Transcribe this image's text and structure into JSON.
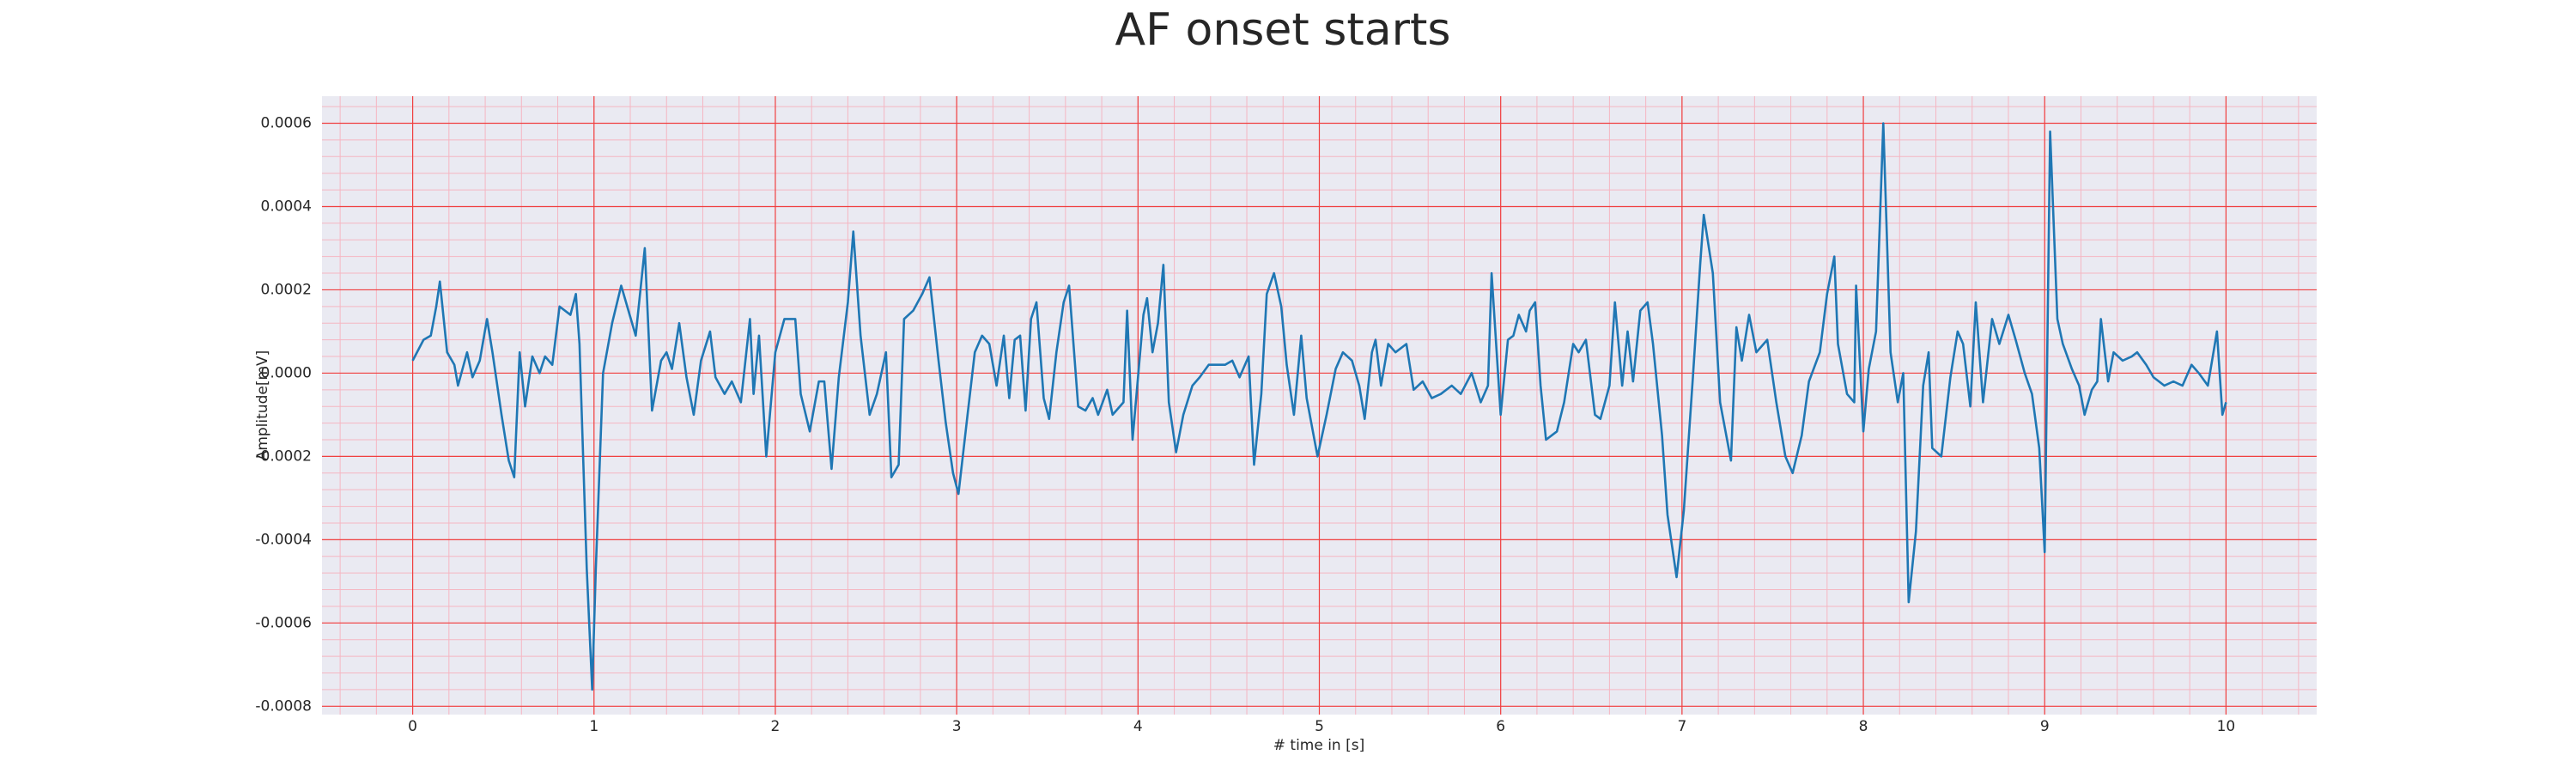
{
  "chart_data": {
    "type": "line",
    "title": "AF onset starts",
    "xlabel": "# time in [s]",
    "ylabel": "Amplitude[mV]",
    "x": [
      0,
      0.06,
      0.1,
      0.13,
      0.15,
      0.19,
      0.23,
      0.25,
      0.3,
      0.33,
      0.37,
      0.41,
      0.44,
      0.49,
      0.53,
      0.56,
      0.59,
      0.62,
      0.66,
      0.7,
      0.73,
      0.77,
      0.81,
      0.87,
      0.9,
      0.92,
      0.96,
      0.99,
      1.01,
      1.05,
      1.1,
      1.15,
      1.19,
      1.23,
      1.28,
      1.32,
      1.37,
      1.4,
      1.43,
      1.47,
      1.51,
      1.55,
      1.59,
      1.64,
      1.67,
      1.72,
      1.76,
      1.81,
      1.86,
      1.88,
      1.91,
      1.95,
      2.0,
      2.05,
      2.11,
      2.14,
      2.19,
      2.24,
      2.27,
      2.31,
      2.35,
      2.4,
      2.43,
      2.47,
      2.52,
      2.56,
      2.61,
      2.64,
      2.68,
      2.71,
      2.76,
      2.81,
      2.85,
      2.9,
      2.94,
      2.98,
      3.01,
      3.06,
      3.1,
      3.14,
      3.18,
      3.22,
      3.26,
      3.29,
      3.32,
      3.35,
      3.38,
      3.41,
      3.44,
      3.48,
      3.51,
      3.55,
      3.59,
      3.62,
      3.67,
      3.71,
      3.75,
      3.78,
      3.83,
      3.86,
      3.92,
      3.94,
      3.97,
      4.03,
      4.05,
      4.08,
      4.11,
      4.14,
      4.17,
      4.21,
      4.25,
      4.3,
      4.34,
      4.39,
      4.43,
      4.48,
      4.52,
      4.56,
      4.61,
      4.64,
      4.68,
      4.71,
      4.75,
      4.79,
      4.82,
      4.86,
      4.9,
      4.93,
      4.99,
      5.04,
      5.09,
      5.13,
      5.18,
      5.22,
      5.25,
      5.29,
      5.31,
      5.34,
      5.38,
      5.42,
      5.48,
      5.52,
      5.57,
      5.62,
      5.67,
      5.73,
      5.78,
      5.84,
      5.89,
      5.93,
      5.95,
      6.0,
      6.04,
      6.07,
      6.1,
      6.14,
      6.16,
      6.19,
      6.22,
      6.25,
      6.31,
      6.35,
      6.4,
      6.43,
      6.47,
      6.52,
      6.55,
      6.6,
      6.63,
      6.67,
      6.7,
      6.73,
      6.77,
      6.81,
      6.84,
      6.89,
      6.92,
      6.97,
      7.01,
      7.06,
      7.1,
      7.12,
      7.17,
      7.21,
      7.27,
      7.3,
      7.33,
      7.37,
      7.41,
      7.47,
      7.52,
      7.57,
      7.61,
      7.66,
      7.7,
      7.76,
      7.8,
      7.84,
      7.86,
      7.91,
      7.95,
      7.96,
      8.0,
      8.03,
      8.07,
      8.11,
      8.15,
      8.19,
      8.22,
      8.25,
      8.29,
      8.33,
      8.36,
      8.38,
      8.43,
      8.48,
      8.52,
      8.55,
      8.59,
      8.62,
      8.66,
      8.71,
      8.75,
      8.8,
      8.84,
      8.89,
      8.93,
      8.97,
      9.0,
      9.03,
      9.07,
      9.1,
      9.15,
      9.19,
      9.22,
      9.26,
      9.29,
      9.31,
      9.35,
      9.38,
      9.43,
      9.48,
      9.51,
      9.56,
      9.6,
      9.66,
      9.71,
      9.76,
      9.81,
      9.85,
      9.9,
      9.95,
      9.98,
      10.0
    ],
    "series": [
      {
        "color": "#1f77b4",
        "values": [
          3e-05,
          8e-05,
          9e-05,
          0.00016,
          0.00022,
          5e-05,
          2e-05,
          -3e-05,
          5e-05,
          -1e-05,
          3e-05,
          0.00013,
          5e-05,
          -0.0001,
          -0.00021,
          -0.00025,
          5e-05,
          -8e-05,
          4e-05,
          0,
          4e-05,
          2e-05,
          0.00016,
          0.00014,
          0.00019,
          7e-05,
          -0.00047,
          -0.00076,
          -0.00047,
          0,
          0.00012,
          0.00021,
          0.00015,
          9e-05,
          0.0003,
          -9e-05,
          3e-05,
          5e-05,
          1e-05,
          0.00012,
          -1e-05,
          -0.0001,
          3e-05,
          0.0001,
          -1e-05,
          -5e-05,
          -2e-05,
          -7e-05,
          0.00013,
          -5e-05,
          9e-05,
          -0.0002,
          5e-05,
          0.00013,
          0.00013,
          -5e-05,
          -0.00014,
          -2e-05,
          -2e-05,
          -0.00023,
          -1e-05,
          0.00017,
          0.00034,
          9e-05,
          -0.0001,
          -5e-05,
          5e-05,
          -0.00025,
          -0.00022,
          0.00013,
          0.00015,
          0.00019,
          0.00023,
          3e-05,
          -0.00012,
          -0.00024,
          -0.00029,
          -0.0001,
          5e-05,
          9e-05,
          7e-05,
          -3e-05,
          9e-05,
          -6e-05,
          8e-05,
          9e-05,
          -9e-05,
          0.00013,
          0.00017,
          -6e-05,
          -0.00011,
          5e-05,
          0.00017,
          0.00021,
          -8e-05,
          -9e-05,
          -6e-05,
          -0.0001,
          -4e-05,
          -0.0001,
          -7e-05,
          0.00015,
          -0.00016,
          0.00014,
          0.00018,
          5e-05,
          0.00012,
          0.00026,
          -7e-05,
          -0.00019,
          -0.0001,
          -3e-05,
          -1e-05,
          2e-05,
          2e-05,
          2e-05,
          3e-05,
          -1e-05,
          4e-05,
          -0.00022,
          -5e-05,
          0.00019,
          0.00024,
          0.00016,
          2e-05,
          -0.0001,
          9e-05,
          -6e-05,
          -0.0002,
          -0.0001,
          1e-05,
          5e-05,
          3e-05,
          -3e-05,
          -0.00011,
          5e-05,
          8e-05,
          -3e-05,
          7e-05,
          5e-05,
          7e-05,
          -4e-05,
          -2e-05,
          -6e-05,
          -5e-05,
          -3e-05,
          -5e-05,
          0,
          -7e-05,
          -3e-05,
          0.00024,
          -0.0001,
          8e-05,
          9e-05,
          0.00014,
          0.0001,
          0.00015,
          0.00017,
          -3e-05,
          -0.00016,
          -0.00014,
          -7e-05,
          7e-05,
          5e-05,
          8e-05,
          -0.0001,
          -0.00011,
          -3e-05,
          0.00017,
          -3e-05,
          0.0001,
          -2e-05,
          0.00015,
          0.00017,
          7e-05,
          -0.00015,
          -0.00034,
          -0.00049,
          -0.00033,
          -1e-05,
          0.00026,
          0.00038,
          0.00024,
          -7e-05,
          -0.00021,
          0.00011,
          3e-05,
          0.00014,
          5e-05,
          8e-05,
          -7e-05,
          -0.0002,
          -0.00024,
          -0.00015,
          -2e-05,
          5e-05,
          0.00019,
          0.00028,
          7e-05,
          -5e-05,
          -7e-05,
          0.00021,
          -0.00014,
          1e-05,
          0.0001,
          0.0006,
          5e-05,
          -7e-05,
          0,
          -0.00055,
          -0.00038,
          -3e-05,
          5e-05,
          -0.00018,
          -0.0002,
          -1e-05,
          0.0001,
          7e-05,
          -8e-05,
          0.00017,
          -7e-05,
          0.00013,
          7e-05,
          0.00014,
          8e-05,
          0,
          -5e-05,
          -0.00018,
          -0.00043,
          0.00058,
          0.00013,
          7e-05,
          1e-05,
          -3e-05,
          -0.0001,
          -4e-05,
          -2e-05,
          0.00013,
          -2e-05,
          5e-05,
          3e-05,
          4e-05,
          5e-05,
          2e-05,
          -1e-05,
          -3e-05,
          -2e-05,
          -3e-05,
          2e-05,
          0,
          -3e-05,
          0.0001,
          -0.0001,
          -7e-05
        ]
      }
    ],
    "xlim": [
      -0.5,
      10.5
    ],
    "xticks": [
      0,
      1,
      2,
      3,
      4,
      5,
      6,
      7,
      8,
      9,
      10
    ],
    "ylim": [
      -0.00082,
      0.000665
    ],
    "yticks": [
      -0.0008,
      -0.0006,
      -0.0004,
      -0.0002,
      {
        "value": 0,
        "label": "0.0000"
      },
      0.0002,
      0.0004,
      0.0006
    ],
    "grid": true,
    "minor_grid": true
  }
}
